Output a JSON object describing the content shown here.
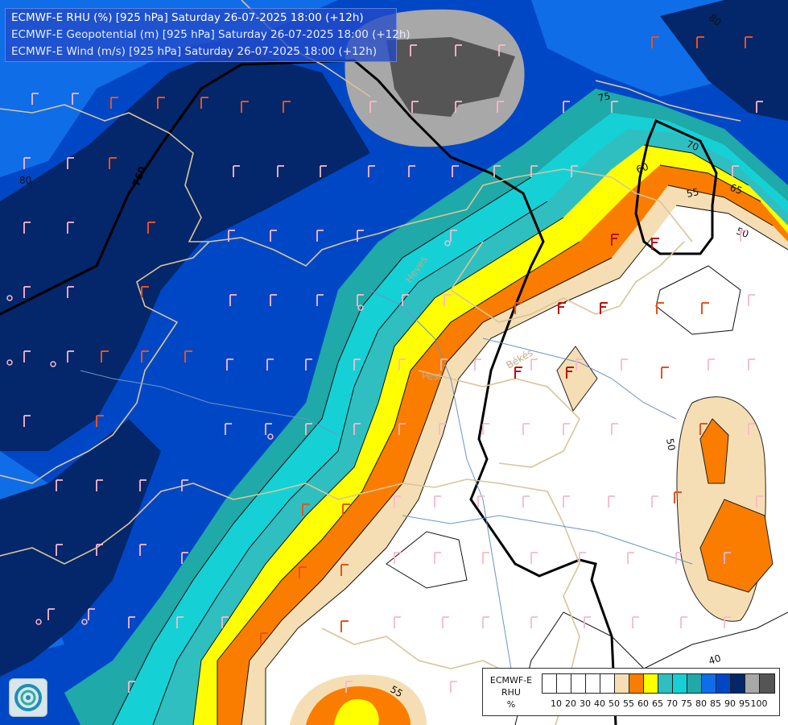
{
  "title_lines": [
    "ECMWF-E RHU (%) [925 hPa] Saturday 26-07-2025 18:00 (+12h)",
    "ECMWF-E Geopotential (m) [925 hPa] Saturday 26-07-2025 18:00 (+12h)",
    "ECMWF-E Wind (m/s) [925 hPa] Saturday 26-07-2025 18:00 (+12h)"
  ],
  "legend": {
    "title_lines": [
      "ECMWF-E",
      "RHU",
      "%"
    ],
    "colors": [
      "#ffffff",
      "#ffffff",
      "#ffffff",
      "#ffffff",
      "#ffffff",
      "#f5deb3",
      "#fa7d00",
      "#ffff00",
      "#2fbfc0",
      "#15d1d6",
      "#1fa9a8",
      "#0f6de8",
      "#0047c6",
      "#04266a",
      "#a8a8a8",
      "#555555"
    ],
    "ticks": [
      "10",
      "20",
      "30",
      "40",
      "50",
      "55",
      "60",
      "65",
      "70",
      "75",
      "80",
      "85",
      "90",
      "95",
      "100"
    ]
  },
  "contour_labels": {
    "rhu": [
      "80",
      "80",
      "75",
      "70",
      "65",
      "60",
      "55",
      "50",
      "50",
      "55",
      "40"
    ],
    "geopotential": [
      "760"
    ]
  },
  "place_labels": [
    "Pest",
    "Békés",
    "Heves"
  ],
  "logo": {
    "icon": "ecmwf-logo-icon"
  }
}
